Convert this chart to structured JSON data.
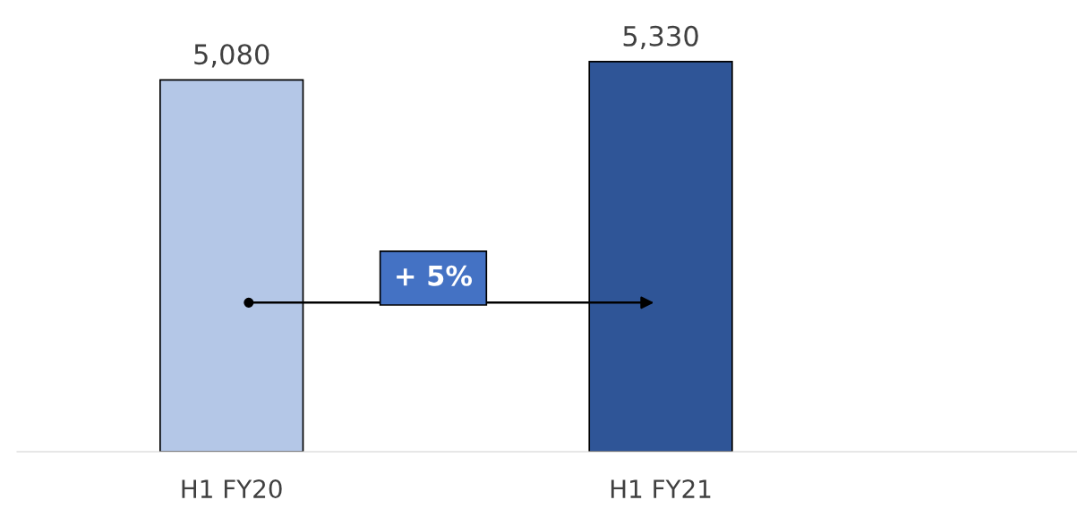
{
  "chart_data": {
    "type": "bar",
    "categories": [
      "H1 FY20",
      "H1 FY21"
    ],
    "values": [
      5080,
      5330
    ],
    "colors": [
      "#b4c7e7",
      "#2f5597"
    ],
    "value_labels": [
      "5,080",
      "5,330"
    ],
    "grid": false,
    "annotations": [
      "+ 5%"
    ]
  }
}
